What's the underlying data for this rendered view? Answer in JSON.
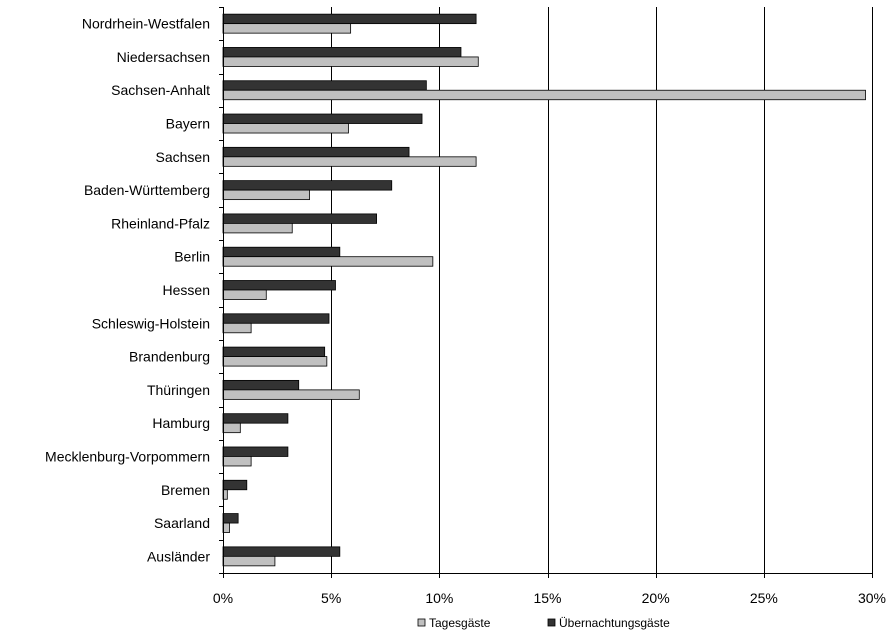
{
  "chart_data": {
    "type": "bar",
    "orientation": "horizontal",
    "title": "",
    "xlabel": "",
    "ylabel": "",
    "xlim": [
      0,
      30
    ],
    "x_ticks": [
      0,
      5,
      10,
      15,
      20,
      25,
      30
    ],
    "x_tick_labels": [
      "0%",
      "5%",
      "10%",
      "15%",
      "20%",
      "25%",
      "30%"
    ],
    "grid": "vertical",
    "legend_position": "bottom",
    "categories": [
      "Nordrhein-Westfalen",
      "Niedersachsen",
      "Sachsen-Anhalt",
      "Bayern",
      "Sachsen",
      "Baden-Württemberg",
      "Rheinland-Pfalz",
      "Berlin",
      "Hessen",
      "Schleswig-Holstein",
      "Brandenburg",
      "Thüringen",
      "Hamburg",
      "Mecklenburg-Vorpommern",
      "Bremen",
      "Saarland",
      "Ausländer"
    ],
    "series": [
      {
        "name": "Übernachtungsgäste",
        "color": "#333333",
        "values": [
          11.7,
          11.0,
          9.4,
          9.2,
          8.6,
          7.8,
          7.1,
          5.4,
          5.2,
          4.9,
          4.7,
          3.5,
          3.0,
          3.0,
          1.1,
          0.7,
          5.4
        ]
      },
      {
        "name": "Tagesgäste",
        "color": "#c0c0c0",
        "values": [
          5.9,
          11.8,
          29.7,
          5.8,
          11.7,
          4.0,
          3.2,
          9.7,
          2.0,
          1.3,
          4.8,
          6.3,
          0.8,
          1.3,
          0.2,
          0.3,
          2.4
        ]
      }
    ]
  }
}
